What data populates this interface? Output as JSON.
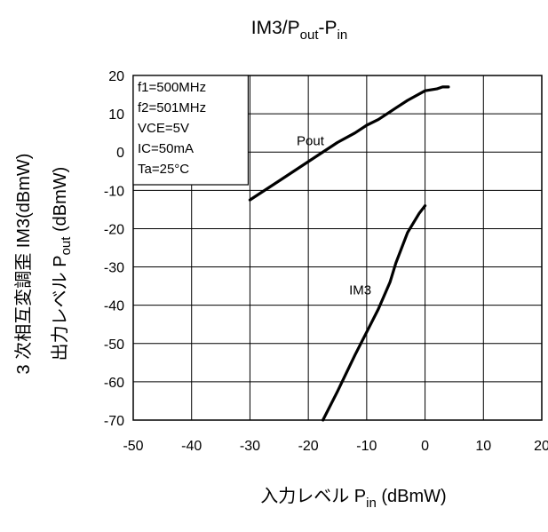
{
  "chart_data": {
    "type": "line",
    "title": {
      "main": "IM3/P",
      "sub1": "out",
      "mid": "-P",
      "sub2": "in"
    },
    "xlabel": {
      "pre": "入力レベル  P",
      "sub": "in",
      "post": " (dBmW)"
    },
    "ylabel": {
      "line1": "3 次相互変調歪  IM3(dBmW)",
      "line2_pre": "出力レベル  P",
      "line2_sub": "out",
      "line2_post": " (dBmW)"
    },
    "xlim": [
      -50,
      20
    ],
    "ylim": [
      -70,
      20
    ],
    "x_ticks": [
      "-50",
      "-40",
      "-30",
      "-20",
      "-10",
      "0",
      "10",
      "20"
    ],
    "y_ticks": [
      "20",
      "10",
      "0",
      "-10",
      "-20",
      "-30",
      "-40",
      "-50",
      "-60",
      "-70"
    ],
    "grid": true,
    "conditions": [
      "f1=500MHz",
      "f2=501MHz",
      "VCE=5V",
      "IC=50mA",
      "Ta=25°C"
    ],
    "series": [
      {
        "name": "Pout",
        "x": [
          -30,
          -25,
          -20,
          -15,
          -12,
          -10,
          -8,
          -5,
          -3,
          0,
          2,
          3,
          4
        ],
        "y": [
          -12.5,
          -7.5,
          -2.5,
          2.5,
          5,
          7,
          8.5,
          11.5,
          13.5,
          16,
          16.5,
          17,
          17
        ]
      },
      {
        "name": "IM3",
        "x": [
          -17.5,
          -15,
          -12,
          -10,
          -8,
          -6,
          -5,
          -3,
          -1,
          0
        ],
        "y": [
          -70,
          -62.5,
          -53,
          -47,
          -41,
          -34,
          -29,
          -21,
          -16,
          -14
        ]
      }
    ]
  }
}
